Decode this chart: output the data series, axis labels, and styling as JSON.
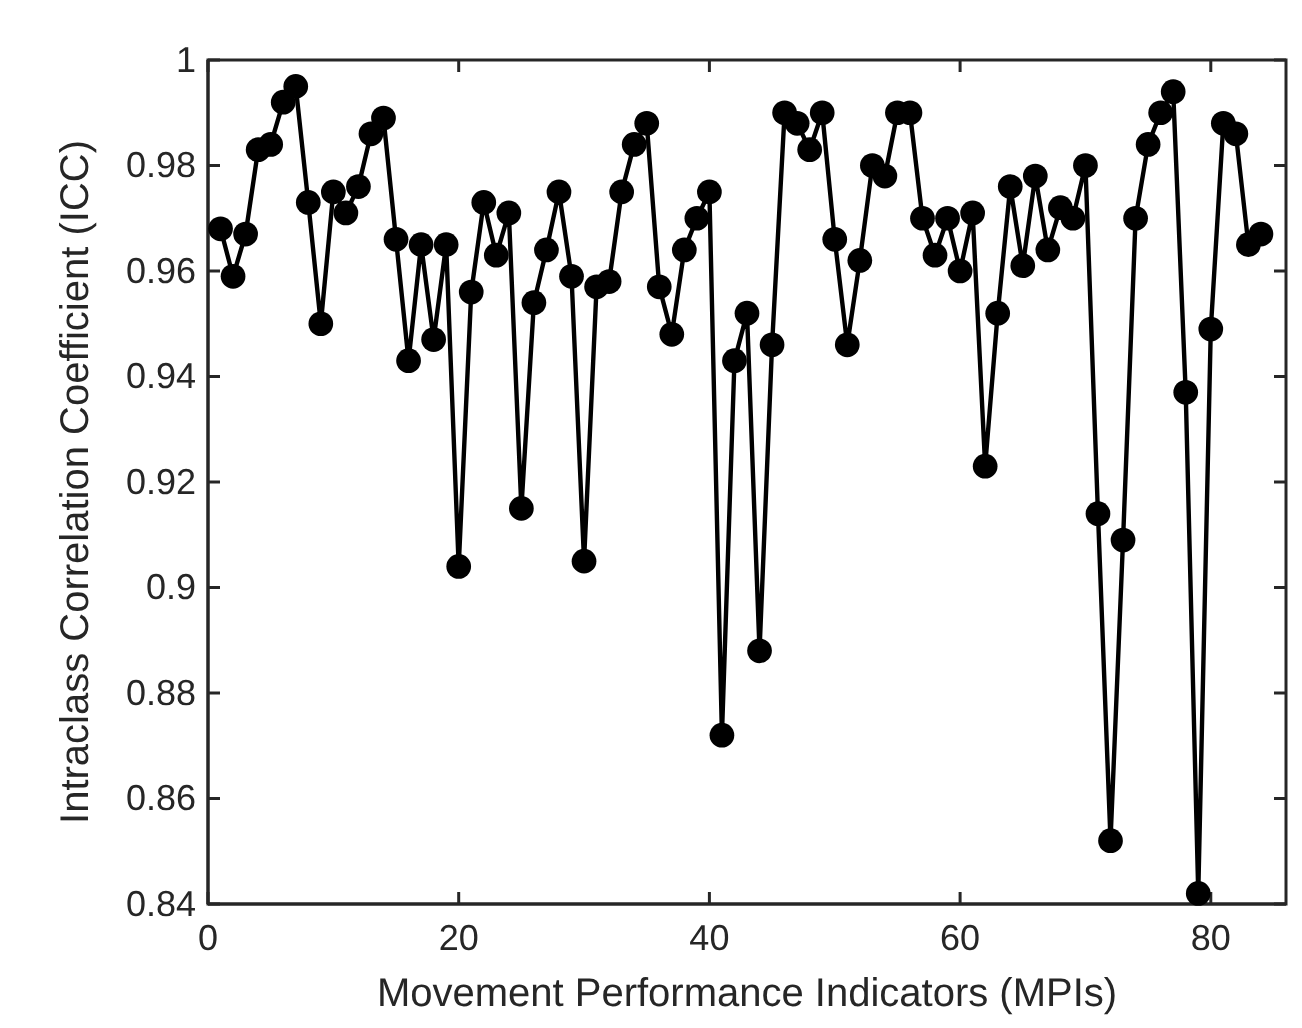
{
  "chart_data": {
    "type": "line",
    "xlabel": "Movement Performance Indicators (MPIs)",
    "ylabel": "Intraclass Correlation Coefficient (ICC)",
    "x": [
      1,
      2,
      3,
      4,
      5,
      6,
      7,
      8,
      9,
      10,
      11,
      12,
      13,
      14,
      15,
      16,
      17,
      18,
      19,
      20,
      21,
      22,
      23,
      24,
      25,
      26,
      27,
      28,
      29,
      30,
      31,
      32,
      33,
      34,
      35,
      36,
      37,
      38,
      39,
      40,
      41,
      42,
      43,
      44,
      45,
      46,
      47,
      48,
      49,
      50,
      51,
      52,
      53,
      54,
      55,
      56,
      57,
      58,
      59,
      60,
      61,
      62,
      63,
      64,
      65,
      66,
      67,
      68,
      69,
      70,
      71,
      72,
      73,
      74,
      75,
      76,
      77,
      78,
      79,
      80,
      81,
      82,
      83,
      84
    ],
    "series": [
      {
        "color": "#000000",
        "values": [
          0.968,
          0.959,
          0.967,
          0.983,
          0.984,
          0.992,
          0.995,
          0.973,
          0.95,
          0.975,
          0.971,
          0.976,
          0.986,
          0.989,
          0.966,
          0.943,
          0.965,
          0.947,
          0.965,
          0.904,
          0.956,
          0.973,
          0.963,
          0.971,
          0.915,
          0.954,
          0.964,
          0.975,
          0.959,
          0.905,
          0.957,
          0.958,
          0.975,
          0.984,
          0.988,
          0.957,
          0.948,
          0.964,
          0.97,
          0.975,
          0.872,
          0.943,
          0.952,
          0.888,
          0.946,
          0.99,
          0.988,
          0.983,
          0.99,
          0.966,
          0.946,
          0.962,
          0.98,
          0.978,
          0.99,
          0.99,
          0.97,
          0.963,
          0.97,
          0.96,
          0.971,
          0.923,
          0.952,
          0.976,
          0.961,
          0.978,
          0.964,
          0.972,
          0.97,
          0.98,
          0.914,
          0.852,
          0.909,
          0.97,
          0.984,
          0.99,
          0.994,
          0.937,
          0.842,
          0.949,
          0.988,
          0.986,
          0.965,
          0.967
        ]
      }
    ],
    "xlim": [
      0,
      86
    ],
    "xticks": [
      0,
      20,
      40,
      60,
      80
    ],
    "ylim": [
      0.84,
      1
    ],
    "yticks": [
      0.84,
      0.86,
      0.88,
      0.9,
      0.92,
      0.94,
      0.96,
      0.98,
      1
    ],
    "marker": "circle",
    "line_style": "solid",
    "grid": false
  }
}
